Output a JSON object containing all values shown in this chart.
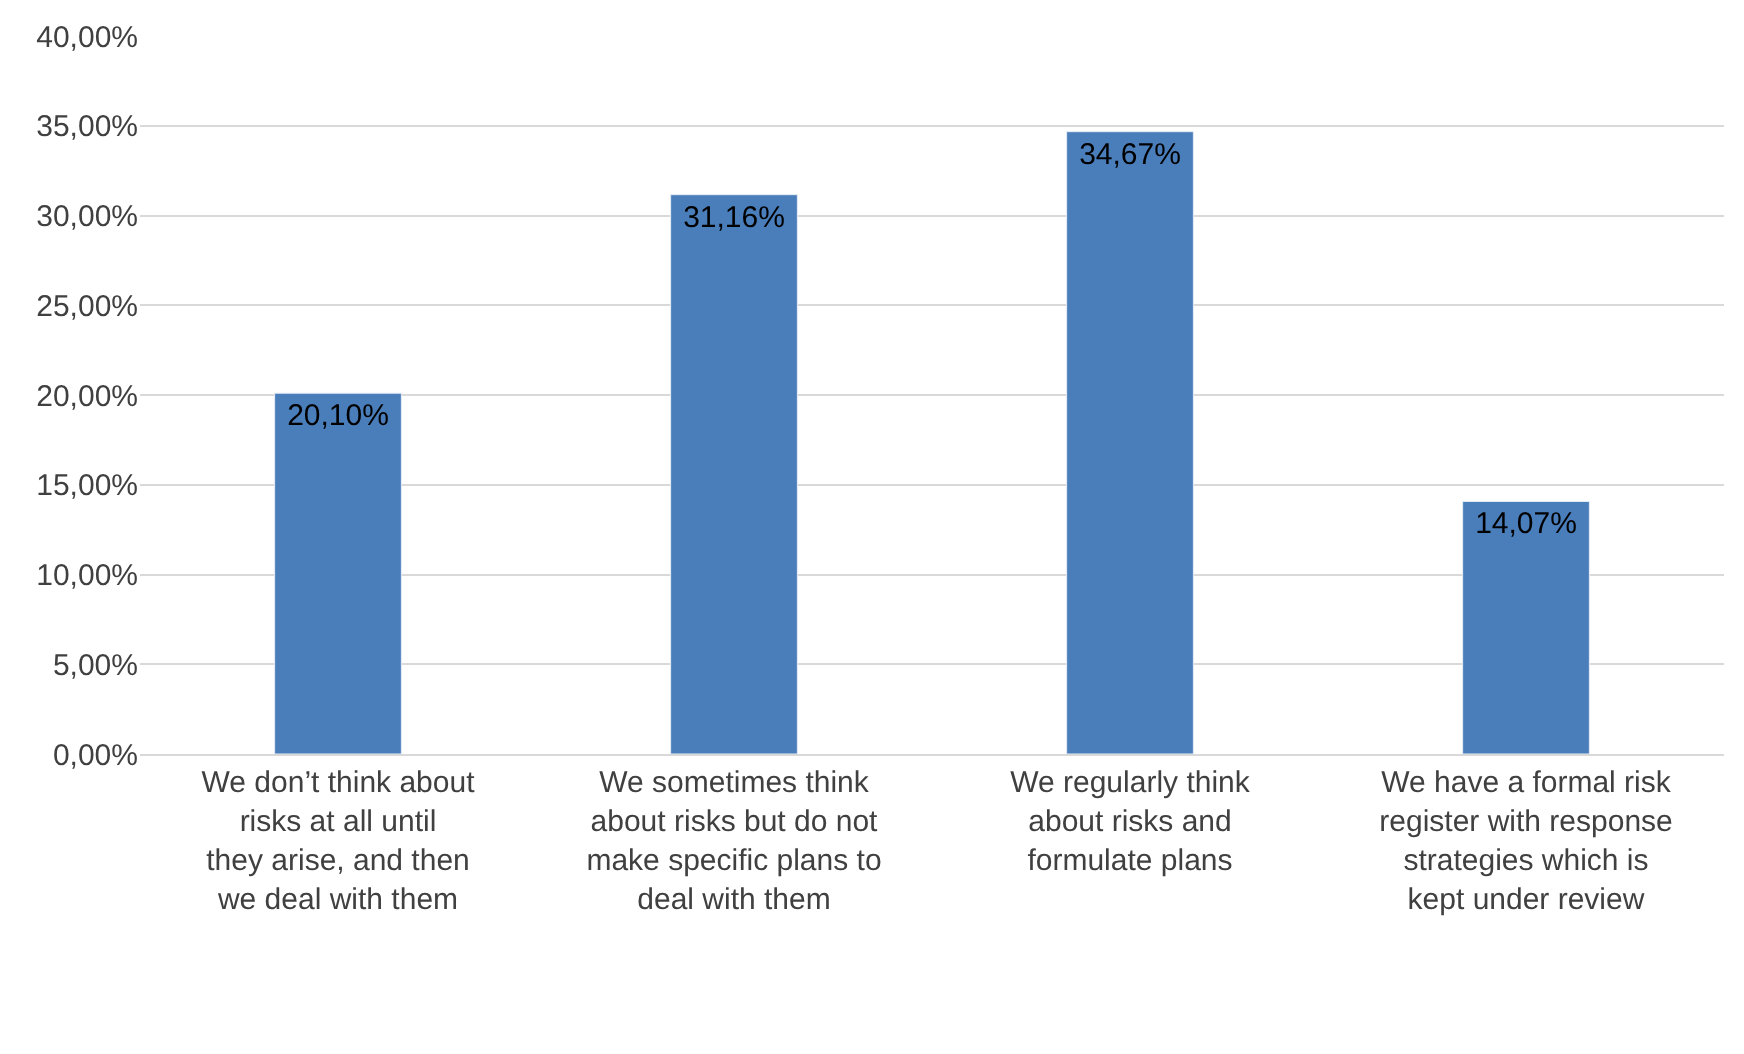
{
  "chart_data": {
    "type": "bar",
    "categories": [
      "We don’t think about risks at all until they arise, and then we deal with them",
      "We sometimes think about risks but do not make specific plans to deal with them",
      "We regularly think about risks and formulate plans",
      "We have a formal risk register with response strategies which is kept under review"
    ],
    "values": [
      20.1,
      31.16,
      34.67,
      14.07
    ],
    "value_labels": [
      "20,10%",
      "31,16%",
      "34,67%",
      "14,07%"
    ],
    "color": "#4a7ebb",
    "ylim": [
      0,
      40
    ],
    "yticks": [
      {
        "value": 0,
        "label": "0,00%"
      },
      {
        "value": 5,
        "label": "5,00%"
      },
      {
        "value": 10,
        "label": "10,00%"
      },
      {
        "value": 15,
        "label": "15,00%"
      },
      {
        "value": 20,
        "label": "20,00%"
      },
      {
        "value": 25,
        "label": "25,00%"
      },
      {
        "value": 30,
        "label": "30,00%"
      },
      {
        "value": 35,
        "label": "35,00%"
      },
      {
        "value": 40,
        "label": "40,00%"
      }
    ],
    "grid": "y"
  }
}
